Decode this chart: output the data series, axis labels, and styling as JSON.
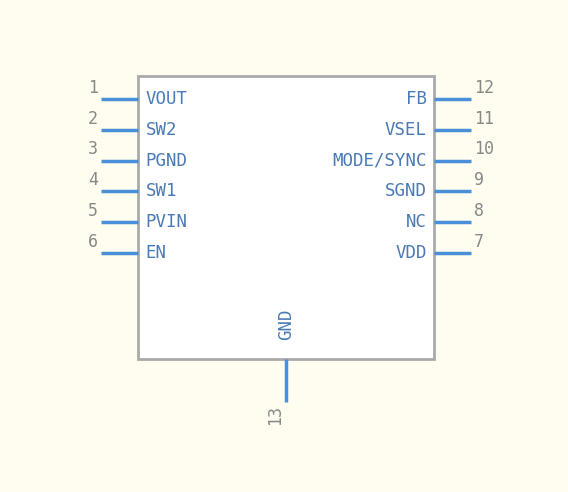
{
  "bg_color": "#fffdf0",
  "box_color": "#aaaaaa",
  "pin_color": "#4a90d9",
  "text_color": "#4a7ab5",
  "num_color": "#888888",
  "left_pins": [
    {
      "num": "1",
      "name": "VOUT"
    },
    {
      "num": "2",
      "name": "SW2"
    },
    {
      "num": "3",
      "name": "PGND"
    },
    {
      "num": "4",
      "name": "SW1"
    },
    {
      "num": "5",
      "name": "PVIN"
    },
    {
      "num": "6",
      "name": "EN"
    }
  ],
  "right_pins": [
    {
      "num": "12",
      "name": "FB"
    },
    {
      "num": "11",
      "name": "VSEL"
    },
    {
      "num": "10",
      "name": "MODE/SYNC"
    },
    {
      "num": "9",
      "name": "SGND"
    },
    {
      "num": "8",
      "name": "NC"
    },
    {
      "num": "7",
      "name": "VDD"
    }
  ],
  "bottom_pin": {
    "num": "13",
    "name": "GND"
  }
}
